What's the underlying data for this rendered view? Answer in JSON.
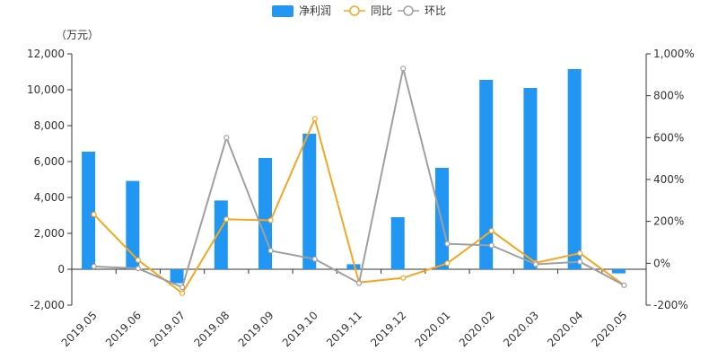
{
  "chart_data": {
    "type": "bar",
    "unit_label": "（万元）",
    "categories": [
      "2019.05",
      "2019.06",
      "2019.07",
      "2019.08",
      "2019.09",
      "2019.10",
      "2019.11",
      "2019.12",
      "2020.01",
      "2020.02",
      "2020.03",
      "2020.04",
      "2020.05"
    ],
    "bar_series": {
      "name": "净利润",
      "color": "#2196f3",
      "axis": "left",
      "values": [
        6550,
        4920,
        -780,
        3830,
        6200,
        7550,
        280,
        2900,
        5650,
        10550,
        10100,
        11150,
        -230
      ]
    },
    "line_series": [
      {
        "name": "同比",
        "color": "#f5a623",
        "axis": "right",
        "values": [
          233,
          15,
          -143,
          210,
          205,
          690,
          -92,
          -70,
          0,
          155,
          2,
          48,
          -105
        ]
      },
      {
        "name": "环比",
        "color": "#a0a0a0",
        "axis": "right",
        "values": [
          -15,
          -25,
          -115,
          600,
          60,
          20,
          -95,
          930,
          93,
          85,
          -5,
          7,
          -105
        ]
      }
    ],
    "left_axis": {
      "min": -2000,
      "max": 12000,
      "ticks": [
        -2000,
        0,
        2000,
        4000,
        6000,
        8000,
        10000,
        12000
      ],
      "tick_labels": [
        "-2,000",
        "0",
        "2,000",
        "4,000",
        "6,000",
        "8,000",
        "10,000",
        "12,000"
      ]
    },
    "right_axis": {
      "min": -200,
      "max": 1000,
      "ticks": [
        -200,
        0,
        200,
        400,
        600,
        800,
        1000
      ],
      "tick_labels": [
        "-200%",
        "0%",
        "200%",
        "400%",
        "600%",
        "800%",
        "1,000%"
      ]
    },
    "legend_position": "top-center",
    "grid": false
  }
}
